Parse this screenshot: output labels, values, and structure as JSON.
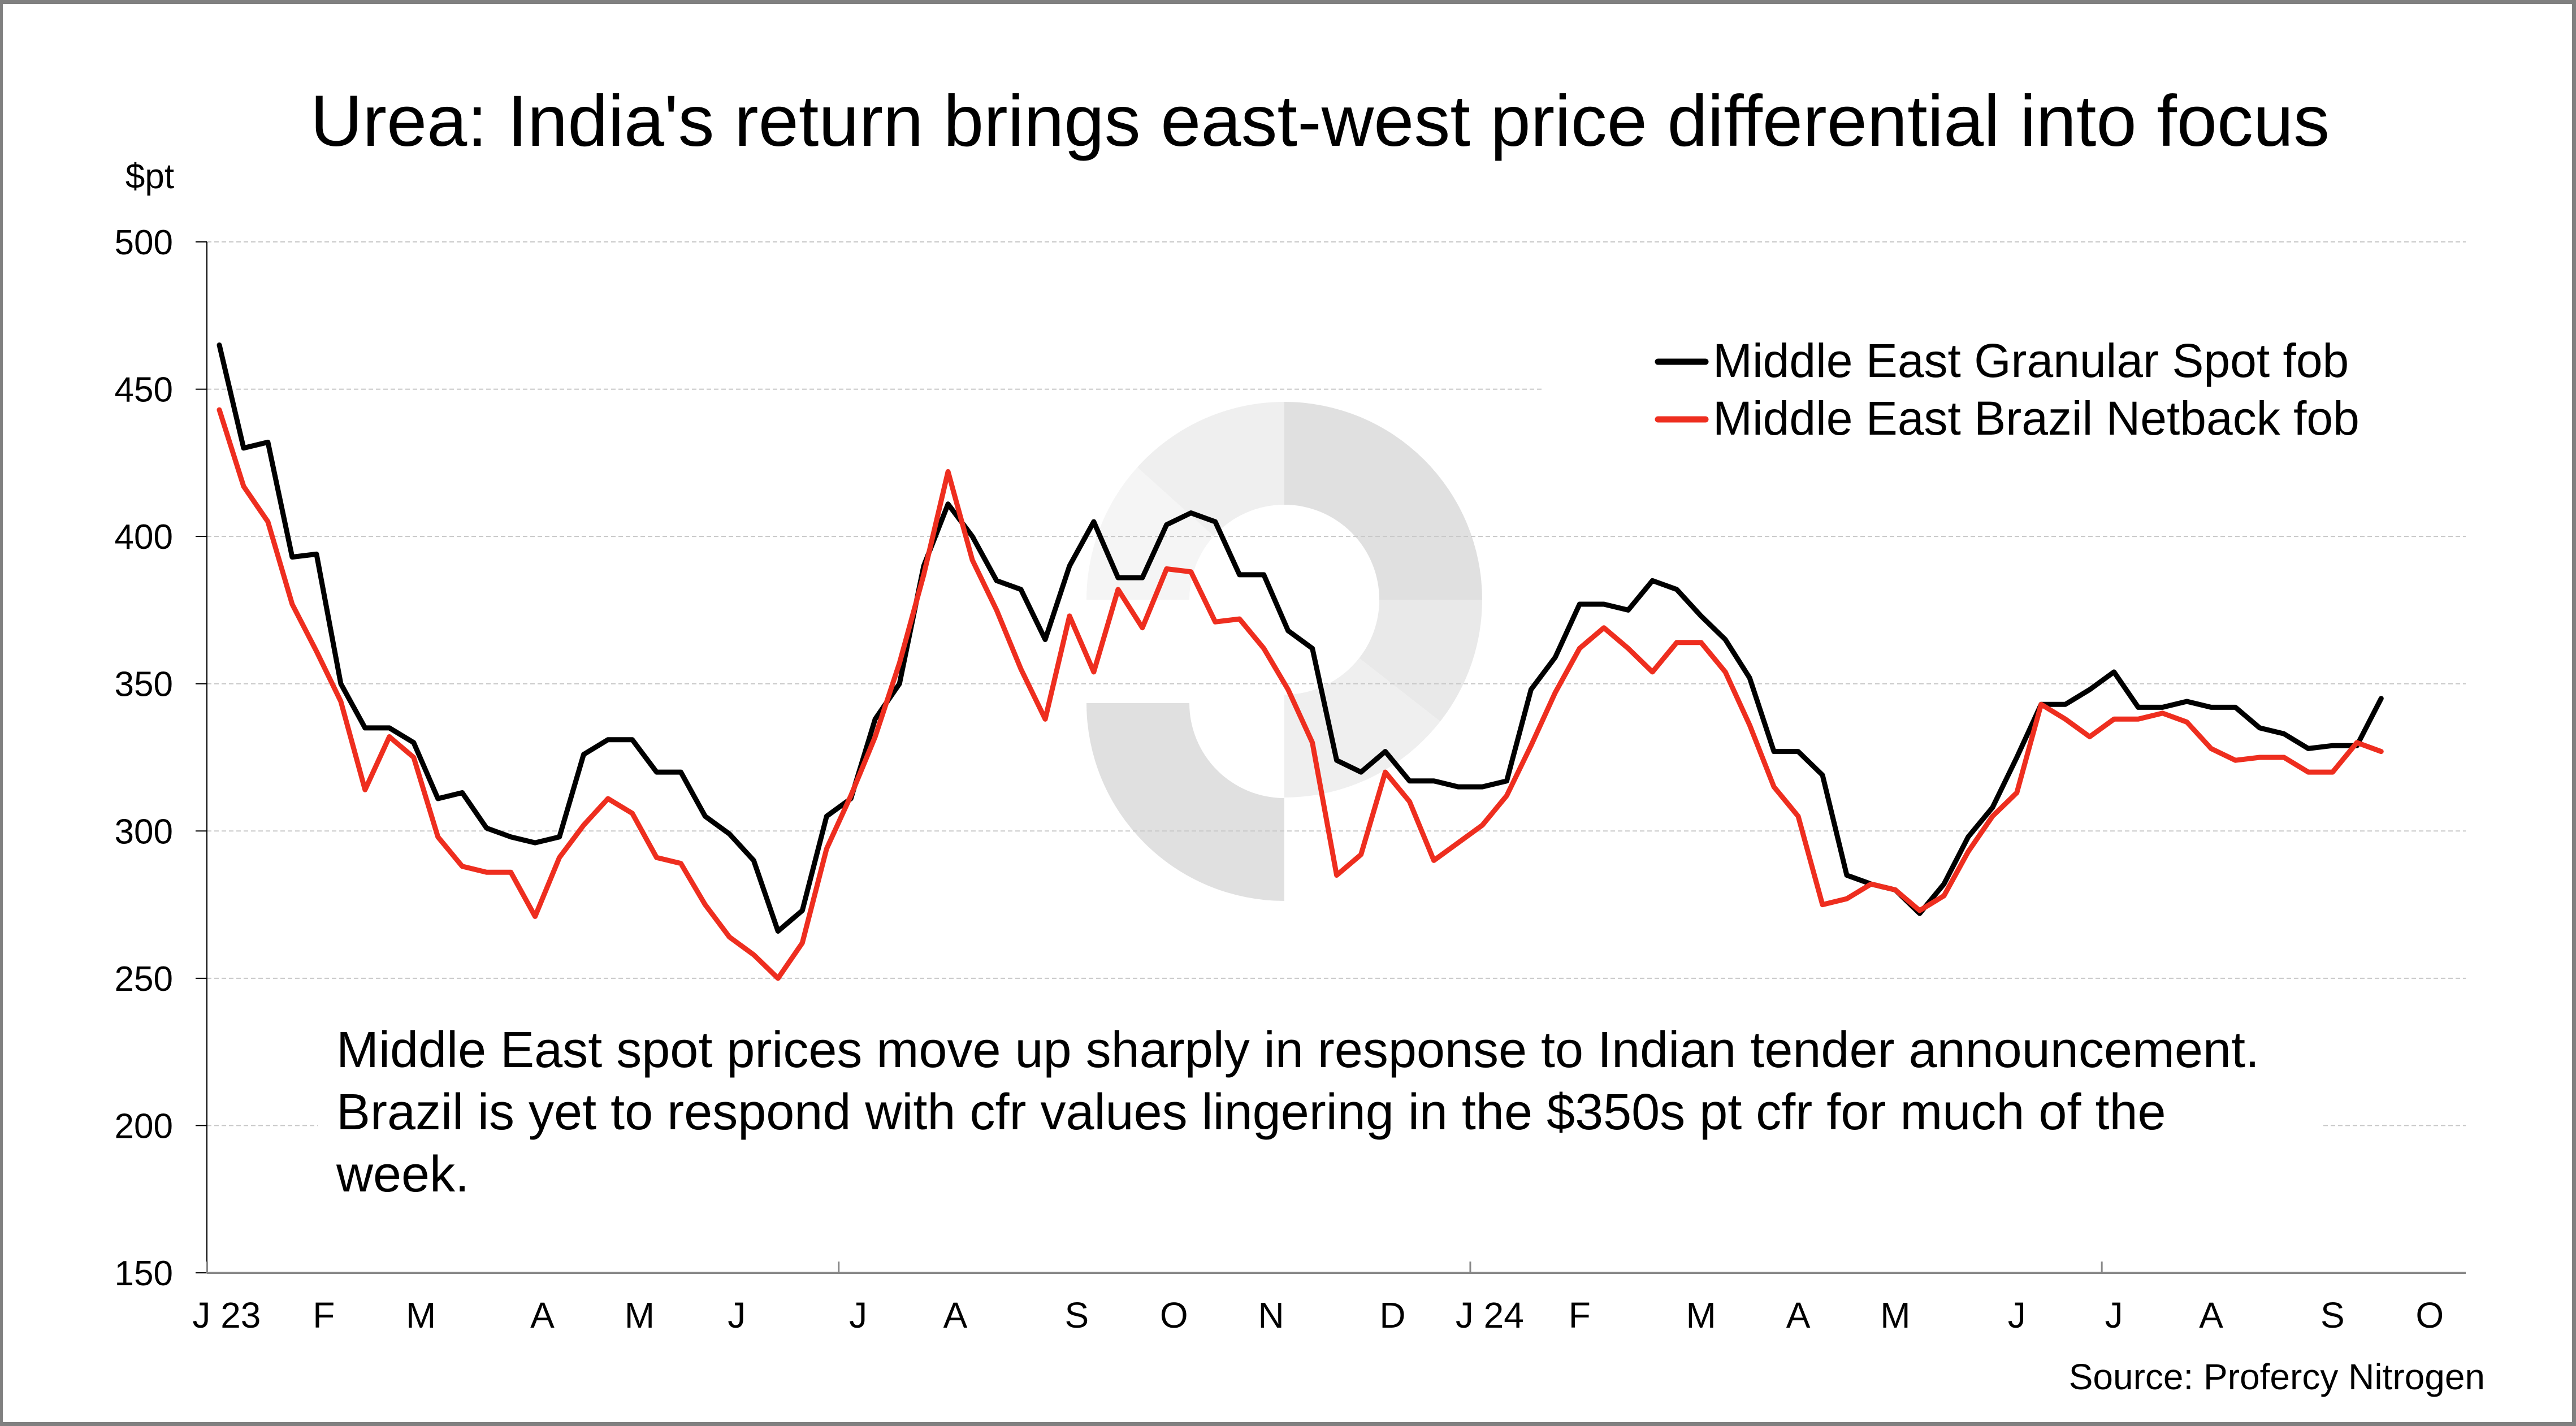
{
  "chart_data": {
    "type": "line",
    "title": "Urea: India's return brings east-west price differential into focus",
    "ylabel": "$pt",
    "xlabel": "",
    "ylim": [
      150,
      500
    ],
    "yticks": [
      150,
      200,
      250,
      300,
      350,
      400,
      450,
      500
    ],
    "grid": true,
    "legend_position": "top-right",
    "x_frequency": "weekly",
    "x_start": "Jan 2023",
    "x_end": "Sep 2024",
    "month_labels": [
      {
        "label": "J 23",
        "week": 0.3
      },
      {
        "label": "F",
        "week": 4.3
      },
      {
        "label": "M",
        "week": 8.3
      },
      {
        "label": "A",
        "week": 13.3
      },
      {
        "label": "M",
        "week": 17.3
      },
      {
        "label": "J",
        "week": 21.3
      },
      {
        "label": "J",
        "week": 26.3
      },
      {
        "label": "A",
        "week": 30.3
      },
      {
        "label": "S",
        "week": 35.3
      },
      {
        "label": "O",
        "week": 39.3
      },
      {
        "label": "N",
        "week": 43.3
      },
      {
        "label": "D",
        "week": 48.3
      },
      {
        "label": "J 24",
        "week": 52.3
      },
      {
        "label": "F",
        "week": 56.0
      },
      {
        "label": "M",
        "week": 61.0
      },
      {
        "label": "A",
        "week": 65.0
      },
      {
        "label": "M",
        "week": 69.0
      },
      {
        "label": "J",
        "week": 74.0
      },
      {
        "label": "J",
        "week": 78.0
      },
      {
        "label": "A",
        "week": 82.0
      },
      {
        "label": "S",
        "week": 87.0
      },
      {
        "label": "O",
        "week": 91.0
      }
    ],
    "half_year_ticks_week": [
      -0.5,
      25.5,
      51.5,
      77.5
    ],
    "series": [
      {
        "name": "Middle East Granular Spot fob",
        "color": "#000000",
        "values": [
          465,
          430,
          432,
          393,
          394,
          350,
          335,
          335,
          330,
          311,
          313,
          301,
          298,
          296,
          298,
          326,
          331,
          331,
          320,
          320,
          305,
          299,
          290,
          266,
          273,
          305,
          311,
          338,
          350,
          390,
          411,
          400,
          385,
          382,
          365,
          390,
          405,
          386,
          386,
          404,
          408,
          405,
          387,
          387,
          368,
          362,
          324,
          320,
          327,
          317,
          317,
          315,
          315,
          317,
          348,
          359,
          377,
          377,
          375,
          385,
          382,
          373,
          365,
          352,
          327,
          327,
          319,
          285,
          282,
          280,
          272,
          282,
          298,
          308,
          325,
          343,
          343,
          348,
          354,
          342,
          342,
          344,
          342,
          342,
          335,
          333,
          328,
          329,
          329,
          345
        ]
      },
      {
        "name": "Middle East Brazil Netback fob",
        "color": "#ee2e1f",
        "values": [
          443,
          417,
          405,
          377,
          361,
          344,
          314,
          332,
          325,
          298,
          288,
          286,
          286,
          271,
          291,
          302,
          311,
          306,
          291,
          289,
          275,
          264,
          258,
          250,
          262,
          294,
          312,
          332,
          357,
          387,
          422,
          392,
          375,
          355,
          338,
          373,
          354,
          382,
          369,
          389,
          388,
          371,
          372,
          362,
          348,
          330,
          285,
          292,
          320,
          310,
          290,
          296,
          302,
          312,
          329,
          347,
          362,
          369,
          362,
          354,
          364,
          364,
          354,
          336,
          315,
          305,
          275,
          277,
          282,
          280,
          273,
          278,
          293,
          305,
          313,
          343,
          338,
          332,
          338,
          338,
          340,
          337,
          328,
          324,
          325,
          325,
          320,
          320,
          330,
          327
        ]
      }
    ],
    "annotation": [
      "Middle East spot prices move up sharply in response to Indian tender announcement.",
      "Brazil is yet to respond with cfr values lingering in the $350s pt cfr for much of the",
      "week."
    ],
    "source": "Source: Profercy Nitrogen"
  },
  "watermark": {
    "name": "profercy-logo-watermark",
    "colors": {
      "dark": "#e0e0e0",
      "mid": "#e9e9e9",
      "light": "#efefef",
      "lightest": "#f5f5f5"
    }
  }
}
